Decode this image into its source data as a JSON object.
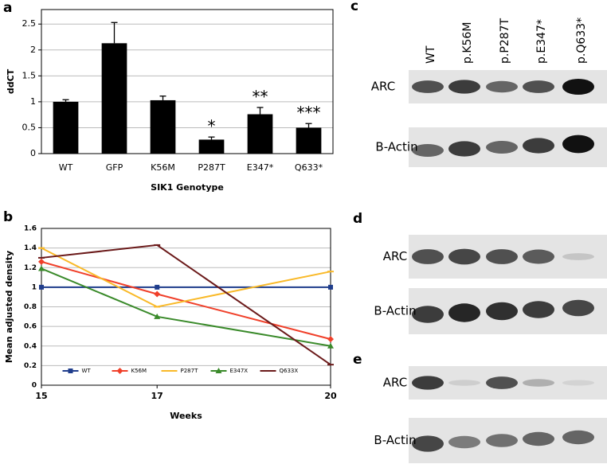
{
  "chart_data": [
    {
      "type": "bar",
      "panel": "a",
      "ylabel": "ddCT",
      "xlabel": "SIK1 Genotype",
      "categories": [
        "WT",
        "GFP",
        "K56M",
        "P287T",
        "E347*",
        "Q633*"
      ],
      "values": [
        1.0,
        2.13,
        1.03,
        0.27,
        0.76,
        0.5
      ],
      "errors": [
        0.04,
        0.4,
        0.08,
        0.05,
        0.13,
        0.08
      ],
      "color": "#000000",
      "ylim": [
        0,
        2.78
      ],
      "yticks": [
        0,
        0.5,
        1,
        1.5,
        2,
        2.5
      ],
      "grid": true,
      "annotations": [
        {
          "category": "P287T",
          "text": "*"
        },
        {
          "category": "E347*",
          "text": "**"
        },
        {
          "category": "Q633*",
          "text": "***"
        }
      ]
    },
    {
      "type": "line",
      "panel": "b",
      "ylabel": "Mean adjusted density",
      "xlabel": "Weeks",
      "x": [
        15,
        17,
        20
      ],
      "xlim": [
        15,
        20
      ],
      "xticks": [
        15,
        17,
        20
      ],
      "ylim": [
        0,
        1.6
      ],
      "yticks": [
        0,
        0.2,
        0.4,
        0.6,
        0.8,
        1,
        1.2,
        1.4,
        1.6
      ],
      "grid": true,
      "legend": "lower center",
      "series": [
        {
          "name": "WT",
          "color": "#1f3d8c",
          "marker": "square",
          "values": [
            1,
            1,
            1
          ]
        },
        {
          "name": "K56M",
          "color": "#f0402a",
          "marker": "diamond",
          "values": [
            1.26,
            0.93,
            0.47
          ]
        },
        {
          "name": "P287T",
          "color": "#f9b928",
          "marker": "dash",
          "values": [
            1.4,
            0.8,
            1.16
          ]
        },
        {
          "name": "E347X",
          "color": "#3a8a2a",
          "marker": "triangle",
          "values": [
            1.19,
            0.7,
            0.4
          ]
        },
        {
          "name": "Q633X",
          "color": "#6b1a1a",
          "marker": "dash",
          "values": [
            1.3,
            1.43,
            0.21
          ]
        }
      ]
    }
  ],
  "blots": [
    {
      "panel": "c",
      "lanes": [
        "WT",
        "p.K56M",
        "p.P287T",
        "p.E347*",
        "p.Q633*"
      ],
      "rows": [
        "ARC",
        "B-Actin"
      ]
    },
    {
      "panel": "d",
      "rows": [
        "ARC",
        "B-Actin"
      ]
    },
    {
      "panel": "e",
      "rows": [
        "ARC",
        "B-Actin"
      ]
    }
  ]
}
